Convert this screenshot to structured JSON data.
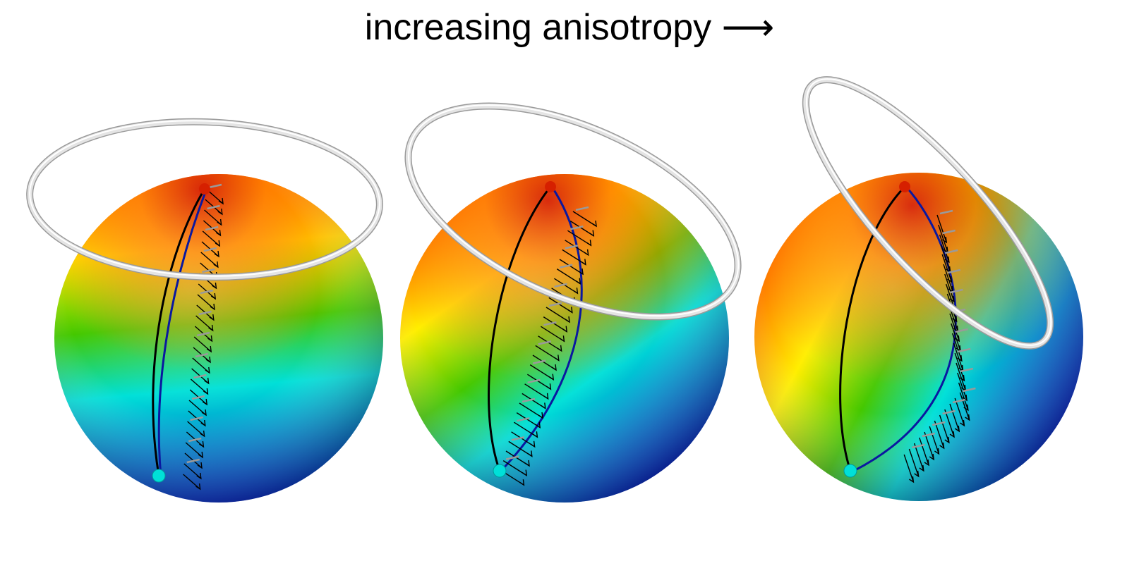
{
  "title": "increasing anisotropy ⟶",
  "colors": {
    "red": "#d62000",
    "orange": "#ff7a00",
    "yellow": "#ffee00",
    "green": "#44c800",
    "cyan": "#00e0d8",
    "blue": "#0028c0",
    "ring": "#e4e4e4",
    "path_black": "#000000",
    "path_blue": "#0a18a0",
    "arrow_gray": "#9a9a9a"
  },
  "panels": [
    {
      "id": "low-anisotropy"
    },
    {
      "id": "medium-anisotropy"
    },
    {
      "id": "high-anisotropy"
    }
  ]
}
